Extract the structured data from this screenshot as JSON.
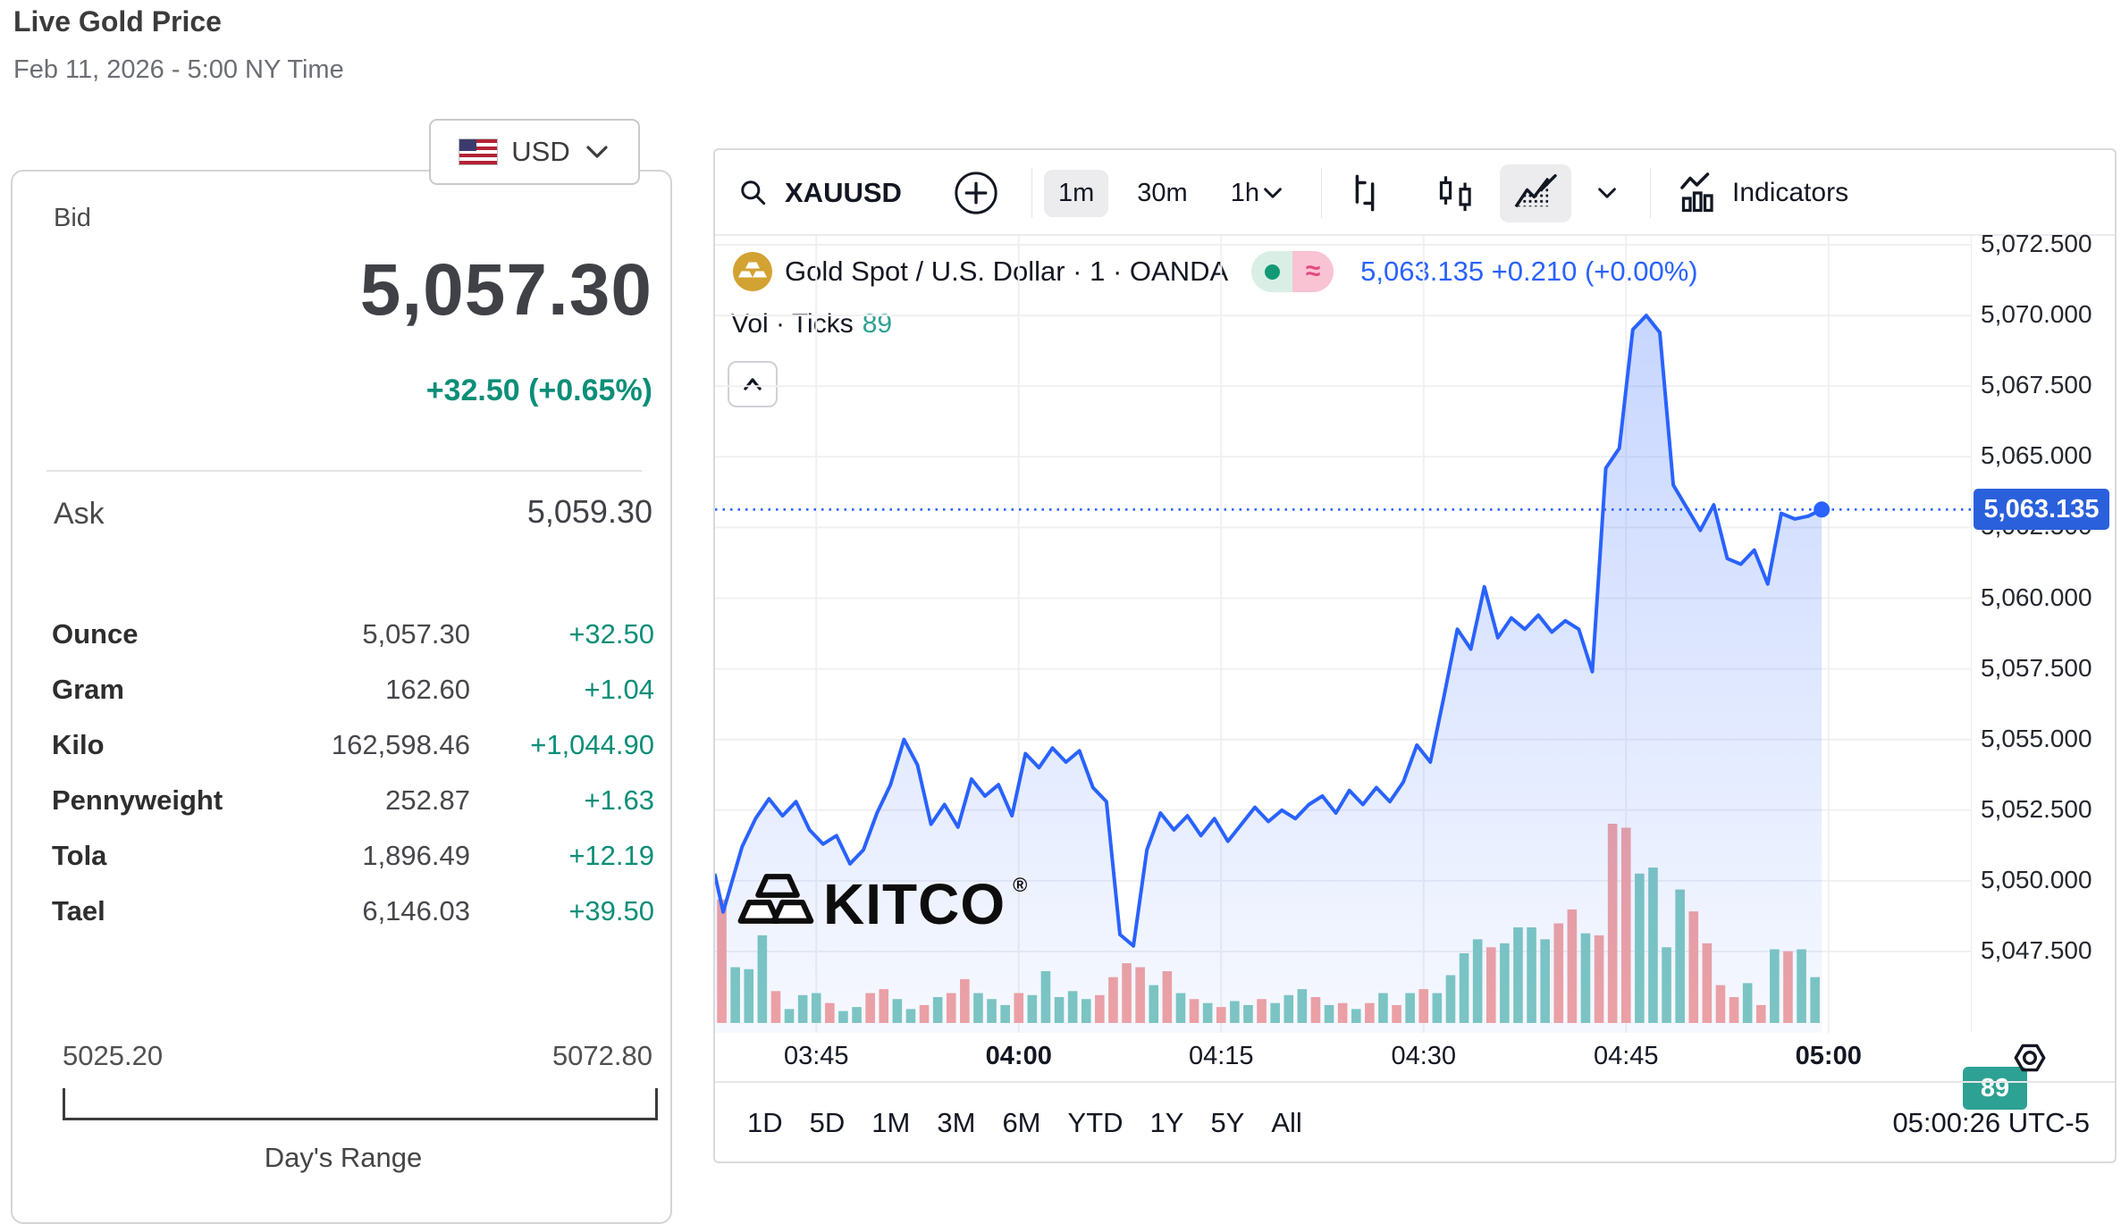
{
  "page": {
    "title": "Live Gold Price",
    "subtitle": "Feb 11, 2026 - 5:00 NY Time"
  },
  "currency_selector": {
    "label": "USD",
    "flag": "us-flag"
  },
  "quote_panel": {
    "bid_label": "Bid",
    "bid": "5,057.30",
    "change": "+32.50 (+0.65%)",
    "ask_label": "Ask",
    "ask": "5,059.30",
    "units": [
      {
        "label": "Ounce",
        "value": "5,057.30",
        "change": "+32.50"
      },
      {
        "label": "Gram",
        "value": "162.60",
        "change": "+1.04"
      },
      {
        "label": "Kilo",
        "value": "162,598.46",
        "change": "+1,044.90"
      },
      {
        "label": "Pennyweight",
        "value": "252.87",
        "change": "+1.63"
      },
      {
        "label": "Tola",
        "value": "1,896.49",
        "change": "+12.19"
      },
      {
        "label": "Tael",
        "value": "6,146.03",
        "change": "+39.50"
      }
    ],
    "range": {
      "low": "5025.20",
      "high": "5072.80",
      "label": "Day's Range"
    }
  },
  "chart": {
    "toolbar": {
      "symbol": "XAUUSD",
      "intervals": [
        "1m",
        "30m",
        "1h"
      ],
      "active_interval": "1m",
      "indicators_label": "Indicators"
    },
    "legend": {
      "title": "Gold Spot / U.S. Dollar · 1 · OANDA",
      "quote": "5,063.135 +0.210 (+0.00%)",
      "vol_label": "Vol · Ticks",
      "vol_value": "89"
    },
    "watermark": "KITCO",
    "price_tag": "5,063.135",
    "vol_badge": "89",
    "clock": "05:00:26 UTC-5",
    "ranges": [
      "1D",
      "5D",
      "1M",
      "3M",
      "6M",
      "YTD",
      "1Y",
      "5Y",
      "All"
    ]
  },
  "chart_data": {
    "type": "area",
    "title": "Gold Spot / U.S. Dollar · 1 · OANDA",
    "last_price": 5063.135,
    "ylim": [
      5047.5,
      5072.5
    ],
    "grid": true,
    "y_ticks": [
      {
        "v": 5072.5,
        "label": "5,072.500"
      },
      {
        "v": 5070.0,
        "label": "5,070.000"
      },
      {
        "v": 5067.5,
        "label": "5,067.500"
      },
      {
        "v": 5065.0,
        "label": "5,065.000"
      },
      {
        "v": 5062.5,
        "label": "5,062.500"
      },
      {
        "v": 5060.0,
        "label": "5,060.000"
      },
      {
        "v": 5057.5,
        "label": "5,057.500"
      },
      {
        "v": 5055.0,
        "label": "5,055.000"
      },
      {
        "v": 5052.5,
        "label": "5,052.500"
      },
      {
        "v": 5050.0,
        "label": "5,050.000"
      },
      {
        "v": 5047.5,
        "label": "5,047.500"
      }
    ],
    "x_ticks": [
      {
        "label": "03:45",
        "minute": 7.5,
        "bold": false
      },
      {
        "label": "04:00",
        "minute": 22.5,
        "bold": true
      },
      {
        "label": "04:15",
        "minute": 37.5,
        "bold": false
      },
      {
        "label": "04:30",
        "minute": 52.5,
        "bold": false
      },
      {
        "label": "04:45",
        "minute": 67.5,
        "bold": false
      },
      {
        "label": "05:00",
        "minute": 82.5,
        "bold": true
      }
    ],
    "series": [
      [
        0,
        5050.2
      ],
      [
        0.6,
        5048.9
      ],
      [
        2,
        5051.2
      ],
      [
        3,
        5052.2
      ],
      [
        4,
        5052.9
      ],
      [
        5,
        5052.3
      ],
      [
        6,
        5052.8
      ],
      [
        7,
        5051.8
      ],
      [
        8,
        5051.3
      ],
      [
        9,
        5051.6
      ],
      [
        10,
        5050.6
      ],
      [
        11,
        5051.1
      ],
      [
        12,
        5052.4
      ],
      [
        13,
        5053.4
      ],
      [
        14,
        5055.0
      ],
      [
        15,
        5054.1
      ],
      [
        16,
        5052.0
      ],
      [
        17,
        5052.7
      ],
      [
        18,
        5051.9
      ],
      [
        19,
        5053.6
      ],
      [
        20,
        5053.0
      ],
      [
        21,
        5053.4
      ],
      [
        22,
        5052.3
      ],
      [
        23,
        5054.5
      ],
      [
        24,
        5054.0
      ],
      [
        25,
        5054.7
      ],
      [
        26,
        5054.2
      ],
      [
        27,
        5054.6
      ],
      [
        28,
        5053.3
      ],
      [
        29,
        5052.8
      ],
      [
        30,
        5048.1
      ],
      [
        31,
        5047.7
      ],
      [
        32,
        5051.1
      ],
      [
        33,
        5052.4
      ],
      [
        34,
        5051.8
      ],
      [
        35,
        5052.3
      ],
      [
        36,
        5051.6
      ],
      [
        37,
        5052.2
      ],
      [
        38,
        5051.4
      ],
      [
        39,
        5052.0
      ],
      [
        40,
        5052.6
      ],
      [
        41,
        5052.1
      ],
      [
        42,
        5052.5
      ],
      [
        43,
        5052.2
      ],
      [
        44,
        5052.7
      ],
      [
        45,
        5053.0
      ],
      [
        46,
        5052.4
      ],
      [
        47,
        5053.2
      ],
      [
        48,
        5052.7
      ],
      [
        49,
        5053.3
      ],
      [
        50,
        5052.8
      ],
      [
        51,
        5053.5
      ],
      [
        52,
        5054.8
      ],
      [
        53,
        5054.2
      ],
      [
        54,
        5056.5
      ],
      [
        55,
        5058.9
      ],
      [
        56,
        5058.2
      ],
      [
        57,
        5060.4
      ],
      [
        58,
        5058.6
      ],
      [
        59,
        5059.3
      ],
      [
        60,
        5058.9
      ],
      [
        61,
        5059.4
      ],
      [
        62,
        5058.8
      ],
      [
        63,
        5059.2
      ],
      [
        64,
        5058.9
      ],
      [
        65,
        5057.4
      ],
      [
        66,
        5064.6
      ],
      [
        67,
        5065.3
      ],
      [
        68,
        5069.5
      ],
      [
        69,
        5070.0
      ],
      [
        70,
        5069.4
      ],
      [
        71,
        5064.0
      ],
      [
        72,
        5063.2
      ],
      [
        73,
        5062.4
      ],
      [
        74,
        5063.3
      ],
      [
        75,
        5061.4
      ],
      [
        76,
        5061.2
      ],
      [
        77,
        5061.7
      ],
      [
        78,
        5060.5
      ],
      [
        79,
        5063.0
      ],
      [
        80,
        5062.8
      ],
      [
        81,
        5062.9
      ],
      [
        82,
        5063.135
      ]
    ],
    "volume": {
      "values": [
        62,
        28,
        27,
        44,
        16,
        7,
        14,
        15,
        10,
        6,
        8,
        15,
        17,
        12,
        7,
        9,
        13,
        15,
        22,
        15,
        12,
        9,
        15,
        14,
        26,
        13,
        16,
        12,
        14,
        23,
        30,
        28,
        19,
        26,
        15,
        12,
        10,
        8,
        11,
        9,
        12,
        10,
        14,
        17,
        13,
        9,
        10,
        7,
        10,
        15,
        9,
        15,
        17,
        15,
        24,
        35,
        42,
        38,
        40,
        48,
        48,
        42,
        50,
        57,
        45,
        44,
        100,
        98,
        75,
        78,
        38,
        67,
        56,
        40,
        19,
        13,
        20,
        9,
        37,
        36,
        37,
        23
      ],
      "colors": "duuuduuuduudduududduuuduuuuuddddudududuuduuudududududuuuuduuuudduddduuuuddddududuu",
      "up_color": "#7fc9c0",
      "down_color": "#f3a3a1"
    },
    "colors": {
      "line": "#2962ff",
      "price_label_bg": "#2b60dd",
      "badge_bg": "#2da193",
      "positive_text": "#0b8e78",
      "grid": "#f0f0f3"
    }
  }
}
